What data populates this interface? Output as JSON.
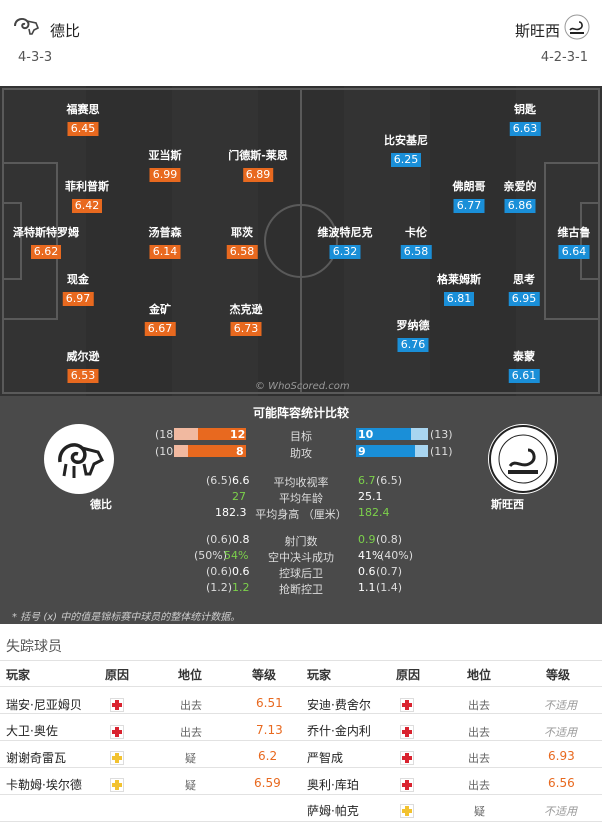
{
  "header": {
    "home": {
      "name": "德比",
      "formation": "4-3-3",
      "logo_icon": "ram-icon"
    },
    "away": {
      "name": "斯旺西",
      "formation": "4-2-3-1",
      "logo_icon": "swan-icon"
    }
  },
  "pitch": {
    "watermark": "© WhoScored.com",
    "home_players": [
      {
        "name": "福赛思",
        "rating": "6.45"
      },
      {
        "name": "亚当斯",
        "rating": "6.99"
      },
      {
        "name": "门德斯-莱恩",
        "rating": "6.89"
      },
      {
        "name": "菲利普斯",
        "rating": "6.42"
      },
      {
        "name": "泽特斯特罗姆",
        "rating": "6.62"
      },
      {
        "name": "汤普森",
        "rating": "6.14"
      },
      {
        "name": "耶茨",
        "rating": "6.58"
      },
      {
        "name": "现金",
        "rating": "6.97"
      },
      {
        "name": "金矿",
        "rating": "6.67"
      },
      {
        "name": "杰克逊",
        "rating": "6.73"
      },
      {
        "name": "威尔逊",
        "rating": "6.53"
      }
    ],
    "away_players": [
      {
        "name": "钥匙",
        "rating": "6.63"
      },
      {
        "name": "比安基尼",
        "rating": "6.25"
      },
      {
        "name": "佛朗哥",
        "rating": "6.77"
      },
      {
        "name": "亲爱的",
        "rating": "6.86"
      },
      {
        "name": "维波特尼克",
        "rating": "6.32"
      },
      {
        "name": "卡伦",
        "rating": "6.58"
      },
      {
        "name": "维古鲁",
        "rating": "6.64"
      },
      {
        "name": "格莱姆斯",
        "rating": "6.81"
      },
      {
        "name": "思考",
        "rating": "6.95"
      },
      {
        "name": "罗纳德",
        "rating": "6.76"
      },
      {
        "name": "泰蒙",
        "rating": "6.61"
      }
    ]
  },
  "comparison": {
    "title": "可能阵容统计比较",
    "home_label": "德比",
    "away_label": "斯旺西",
    "goals": {
      "label": "目标",
      "home_total": "(18)",
      "home": "12",
      "away": "10",
      "away_total": "(13)",
      "home_frac": 0.67,
      "away_frac": 0.77
    },
    "assists": {
      "label": "助攻",
      "home_total": "(10)",
      "home": "8",
      "away": "9",
      "away_total": "(11)",
      "home_frac": 0.8,
      "away_frac": 0.82
    },
    "stats": [
      {
        "label": "平均收视率",
        "home_total": "(6.5)",
        "home": "6.6",
        "away": "6.7",
        "away_total": "(6.5)"
      },
      {
        "label": "平均年龄",
        "home_total": "",
        "home": "27",
        "away": "25.1",
        "away_total": ""
      },
      {
        "label": "平均身高 （厘米）",
        "home_total": "",
        "home": "182.3",
        "away": "182.4",
        "away_total": ""
      },
      {
        "label": "射门数",
        "home_total": "(0.6)",
        "home": "0.8",
        "away": "0.9",
        "away_total": "(0.8)"
      },
      {
        "label": "空中决斗成功",
        "home_total": "(50%)",
        "home": "54%",
        "away": "41%",
        "away_total": "(40%)"
      },
      {
        "label": "控球后卫",
        "home_total": "(0.6)",
        "home": "0.6",
        "away": "0.6",
        "away_total": "(0.7)"
      },
      {
        "label": "抢断控卫",
        "home_total": "(1.2)",
        "home": "1.2",
        "away": "1.1",
        "away_total": "(1.4)"
      }
    ],
    "footnote": "* 括号 (x) 中的值是锦标赛中球员的整体统计数据。"
  },
  "missing": {
    "title": "失踪球员",
    "headers": [
      "玩家",
      "原因",
      "地位",
      "等级",
      "玩家",
      "原因",
      "地位",
      "等级"
    ],
    "home_rows": [
      {
        "player": "瑞安·尼亚姆贝",
        "reason": "injury",
        "status": "出去",
        "rating": "6.51"
      },
      {
        "player": "大卫·奥佐",
        "reason": "injury",
        "status": "出去",
        "rating": "7.13"
      },
      {
        "player": "谢谢奇雷瓦",
        "reason": "doubt",
        "status": "疑",
        "rating": "6.2"
      },
      {
        "player": "卡勒姆·埃尔德",
        "reason": "doubt",
        "status": "疑",
        "rating": "6.59"
      }
    ],
    "away_rows": [
      {
        "player": "安迪·费舍尔",
        "reason": "injury",
        "status": "出去",
        "rating": "不适用"
      },
      {
        "player": "乔什·金内利",
        "reason": "injury",
        "status": "出去",
        "rating": "不适用"
      },
      {
        "player": "严智成",
        "reason": "injury",
        "status": "出去",
        "rating": "6.93"
      },
      {
        "player": "奥利·库珀",
        "reason": "injury",
        "status": "出去",
        "rating": "6.56"
      },
      {
        "player": "萨姆·帕克",
        "reason": "doubt",
        "status": "疑",
        "rating": "不适用"
      }
    ]
  }
}
